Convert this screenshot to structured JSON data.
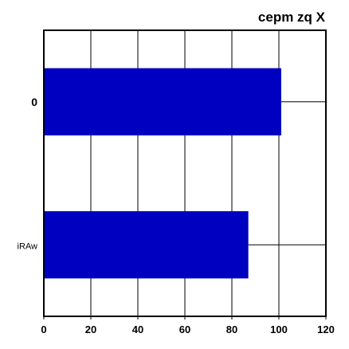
{
  "chart_data": {
    "type": "bar",
    "orientation": "horizontal",
    "title": "cepm zq X",
    "categories": [
      "0",
      "iRAw"
    ],
    "values": [
      101,
      87
    ],
    "xlim": [
      0,
      120
    ],
    "xticks": [
      0,
      20,
      40,
      60,
      80,
      100,
      120
    ],
    "grid": true,
    "bar_color": "#0000c0"
  }
}
